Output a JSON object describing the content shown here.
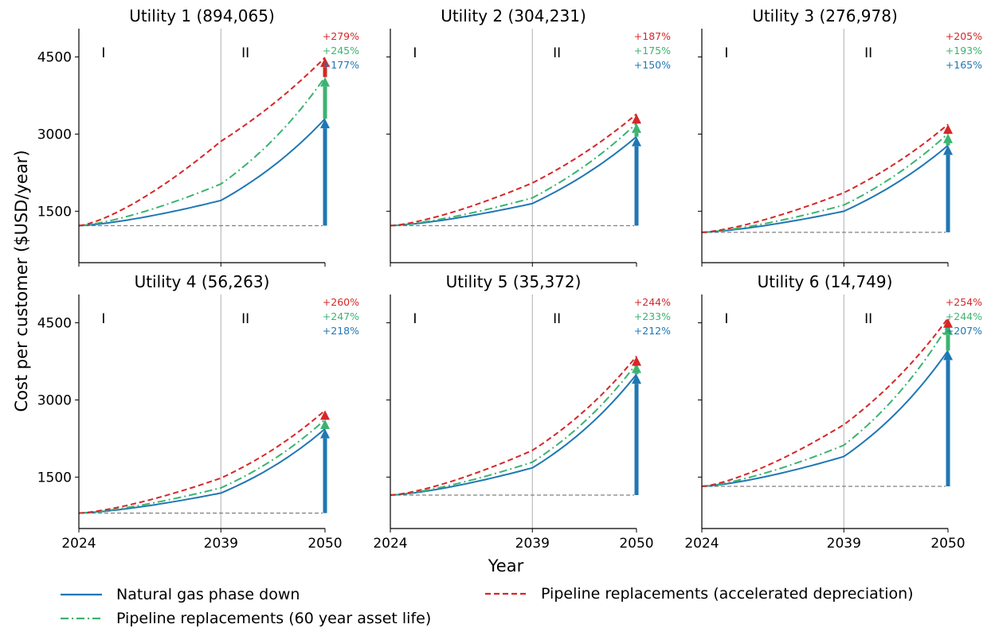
{
  "chart_data": {
    "type": "line",
    "xlabel": "Year",
    "ylabel": "Cost per customer ($USD/year)",
    "x_ticks": [
      2024,
      2039,
      2050
    ],
    "y_ticks": [
      1500,
      3000,
      4500
    ],
    "xlim": [
      2024,
      2050
    ],
    "ylim": [
      500,
      5050
    ],
    "divider_year": 2039,
    "regions": [
      "I",
      "II"
    ],
    "colors": {
      "phase_down": "#1f77b4",
      "sixty_year": "#3cb371",
      "accelerated": "#d62728",
      "baseline": "#808080",
      "divider": "#b0b0b0"
    },
    "legend": [
      {
        "key": "phase_down",
        "label": "Natural gas phase down",
        "style": "solid"
      },
      {
        "key": "sixty_year",
        "label": "Pipeline replacements (60 year asset life)",
        "style": "dashdot"
      },
      {
        "key": "accelerated",
        "label": "Pipeline replacements (accelerated depreciation)",
        "style": "dashed"
      }
    ],
    "panels": [
      {
        "title": "Utility 1 (894,065)",
        "base": 1220,
        "mid": {
          "phase_down": 1710,
          "sixty_year": 2030,
          "accelerated": 2860
        },
        "end": {
          "phase_down": 3300,
          "sixty_year": 4110,
          "accelerated": 4490
        },
        "pct": {
          "accelerated": "+279%",
          "sixty_year": "+245%",
          "phase_down": "+177%"
        }
      },
      {
        "title": "Utility 2 (304,231)",
        "base": 1220,
        "mid": {
          "phase_down": 1650,
          "sixty_year": 1760,
          "accelerated": 2050
        },
        "end": {
          "phase_down": 2950,
          "sixty_year": 3210,
          "accelerated": 3390
        },
        "pct": {
          "accelerated": "+187%",
          "sixty_year": "+175%",
          "phase_down": "+150%"
        }
      },
      {
        "title": "Utility 3 (276,978)",
        "base": 1090,
        "mid": {
          "phase_down": 1500,
          "sixty_year": 1620,
          "accelerated": 1860
        },
        "end": {
          "phase_down": 2780,
          "sixty_year": 3010,
          "accelerated": 3190
        },
        "pct": {
          "accelerated": "+205%",
          "sixty_year": "+193%",
          "phase_down": "+165%"
        }
      },
      {
        "title": "Utility 4 (56,263)",
        "base": 800,
        "mid": {
          "phase_down": 1190,
          "sixty_year": 1290,
          "accelerated": 1480
        },
        "end": {
          "phase_down": 2440,
          "sixty_year": 2620,
          "accelerated": 2800
        },
        "pct": {
          "accelerated": "+260%",
          "sixty_year": "+247%",
          "phase_down": "+218%"
        }
      },
      {
        "title": "Utility 5 (35,372)",
        "base": 1150,
        "mid": {
          "phase_down": 1680,
          "sixty_year": 1790,
          "accelerated": 2020
        },
        "end": {
          "phase_down": 3500,
          "sixty_year": 3710,
          "accelerated": 3850
        },
        "pct": {
          "accelerated": "+244%",
          "sixty_year": "+233%",
          "phase_down": "+212%"
        }
      },
      {
        "title": "Utility 6 (14,749)",
        "base": 1320,
        "mid": {
          "phase_down": 1900,
          "sixty_year": 2120,
          "accelerated": 2520
        },
        "end": {
          "phase_down": 3960,
          "sixty_year": 4450,
          "accelerated": 4590
        },
        "pct": {
          "accelerated": "+254%",
          "sixty_year": "+244%",
          "phase_down": "+207%"
        }
      }
    ]
  }
}
